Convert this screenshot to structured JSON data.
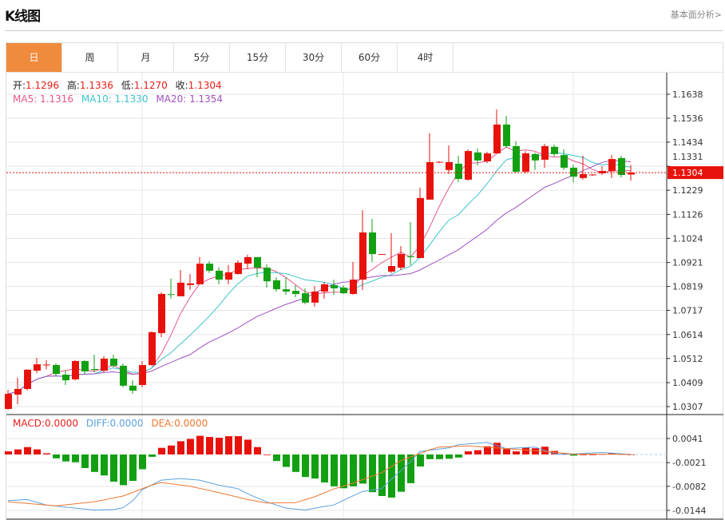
{
  "header": {
    "title": "K线图",
    "link": "基本面分析>"
  },
  "tabs": [
    {
      "label": "日",
      "active": true
    },
    {
      "label": "周"
    },
    {
      "label": "月"
    },
    {
      "label": "5分"
    },
    {
      "label": "15分"
    },
    {
      "label": "30分"
    },
    {
      "label": "60分"
    },
    {
      "label": "4时"
    }
  ],
  "ohlc_legend": {
    "open_label": "开:",
    "open": "1.1296",
    "high_label": "高:",
    "high": "1.1336",
    "low_label": "低:",
    "low": "1.1270",
    "close_label": "收:",
    "close": "1.1304"
  },
  "ma_legend": {
    "ma5": "MA5: 1.1316",
    "ma10": "MA10: 1.1330",
    "ma20": "MA20: 1.1354"
  },
  "macd_legend": {
    "macd": "MACD:0.0000",
    "diff": "DIFF:0.0000",
    "dea": "DEA:0.0000"
  },
  "current_price": "1.1304",
  "colors": {
    "up": "#e8120c",
    "down": "#12a012",
    "ma5": "#e8568a",
    "ma10": "#3cc4cc",
    "ma20": "#a050c0",
    "diff": "#5aa0e0",
    "dea": "#f07830",
    "active_tab": "#f08a3c"
  },
  "chart_data": [
    {
      "type": "candlestick",
      "price_ticks": [
        "1.1638",
        "1.1536",
        "1.1434",
        "1.1331",
        "1.1229",
        "1.1126",
        "1.1024",
        "1.0921",
        "1.0819",
        "1.0717",
        "1.0614",
        "1.0512",
        "1.0409",
        "1.0307"
      ],
      "ylim": [
        1.0307,
        1.1638
      ],
      "ohlc": [
        [
          1.0297,
          1.0378,
          1.0293,
          1.0361
        ],
        [
          1.0358,
          1.043,
          1.0317,
          1.0382
        ],
        [
          1.0382,
          1.0467,
          1.0375,
          1.0464
        ],
        [
          1.046,
          1.0515,
          1.045,
          1.0487
        ],
        [
          1.0483,
          1.0505,
          1.0466,
          1.0486
        ],
        [
          1.0484,
          1.0491,
          1.0436,
          1.0446
        ],
        [
          1.0443,
          1.046,
          1.0399,
          1.0419
        ],
        [
          1.0423,
          1.0505,
          1.0419,
          1.0501
        ],
        [
          1.0501,
          1.0505,
          1.0443,
          1.0457
        ],
        [
          1.0467,
          1.0528,
          1.0453,
          1.0463
        ],
        [
          1.046,
          1.0522,
          1.0453,
          1.0511
        ],
        [
          1.0511,
          1.0528,
          1.0474,
          1.0481
        ],
        [
          1.0481,
          1.0491,
          1.0389,
          1.0396
        ],
        [
          1.0396,
          1.0419,
          1.0361,
          1.0375
        ],
        [
          1.0399,
          1.0501,
          1.0389,
          1.0484
        ],
        [
          1.0484,
          1.0628,
          1.0481,
          1.0624
        ],
        [
          1.062,
          1.0794,
          1.0603,
          1.0787
        ],
        [
          1.0786,
          1.0852,
          1.0767,
          1.0783
        ],
        [
          1.0777,
          1.0889,
          1.0777,
          1.0835
        ],
        [
          1.0825,
          1.0872,
          1.0804,
          1.0832
        ],
        [
          1.0828,
          1.0944,
          1.0828,
          1.0916
        ],
        [
          1.0916,
          1.0927,
          1.0876,
          1.0886
        ],
        [
          1.0886,
          1.09,
          1.0828,
          1.0848
        ],
        [
          1.0848,
          1.091,
          1.0828,
          1.0879
        ],
        [
          1.0872,
          1.093,
          1.0869,
          1.092
        ],
        [
          1.0916,
          1.0954,
          1.0893,
          1.0944
        ],
        [
          1.0944,
          1.0944,
          1.0858,
          1.0899
        ],
        [
          1.0899,
          1.0913,
          1.0814,
          1.0841
        ],
        [
          1.0845,
          1.0858,
          1.0797,
          1.0807
        ],
        [
          1.0807,
          1.0858,
          1.0783,
          1.0797
        ],
        [
          1.08,
          1.0824,
          1.0773,
          1.0787
        ],
        [
          1.079,
          1.0811,
          1.0743,
          1.075
        ],
        [
          1.075,
          1.0821,
          1.0733,
          1.0797
        ],
        [
          1.0797,
          1.0838,
          1.0766,
          1.0828
        ],
        [
          1.0824,
          1.0848,
          1.0783,
          1.0811
        ],
        [
          1.0814,
          1.0824,
          1.0787,
          1.079
        ],
        [
          1.0787,
          1.0923,
          1.0783,
          1.0848
        ],
        [
          1.0848,
          1.1144,
          1.0804,
          1.1049
        ],
        [
          1.1049,
          1.1107,
          1.0923,
          1.0957
        ],
        [
          1.0955,
          1.0957,
          1.0955,
          1.0957
        ],
        [
          1.0882,
          1.1046,
          1.0876,
          1.0906
        ],
        [
          1.0899,
          1.0991,
          1.0889,
          1.0957
        ],
        [
          1.0947,
          1.1093,
          1.091,
          1.0944
        ],
        [
          1.094,
          1.124,
          1.094,
          1.1196
        ],
        [
          1.1189,
          1.1471,
          1.1189,
          1.1349
        ],
        [
          1.1348,
          1.1352,
          1.1345,
          1.135
        ],
        [
          1.1315,
          1.142,
          1.1298,
          1.1349
        ],
        [
          1.1342,
          1.1376,
          1.1263,
          1.1277
        ],
        [
          1.1274,
          1.1403,
          1.127,
          1.1396
        ],
        [
          1.139,
          1.1407,
          1.1335,
          1.1356
        ],
        [
          1.1352,
          1.1393,
          1.1345,
          1.1386
        ],
        [
          1.1386,
          1.1573,
          1.1386,
          1.1509
        ],
        [
          1.1509,
          1.1546,
          1.141,
          1.1417
        ],
        [
          1.1417,
          1.1437,
          1.1301,
          1.1308
        ],
        [
          1.1308,
          1.1396,
          1.1301,
          1.1386
        ],
        [
          1.1383,
          1.139,
          1.1315,
          1.1356
        ],
        [
          1.1359,
          1.1427,
          1.1325,
          1.1417
        ],
        [
          1.1414,
          1.1424,
          1.1372,
          1.1383
        ],
        [
          1.1379,
          1.1403,
          1.1315,
          1.1325
        ],
        [
          1.1325,
          1.1338,
          1.1263,
          1.1287
        ],
        [
          1.1281,
          1.1376,
          1.1274,
          1.1298
        ],
        [
          1.1294,
          1.1298,
          1.129,
          1.1296
        ],
        [
          1.1301,
          1.1331,
          1.1294,
          1.1311
        ],
        [
          1.1311,
          1.1379,
          1.1281,
          1.1362
        ],
        [
          1.1366,
          1.1376,
          1.1284,
          1.1294
        ],
        [
          1.1296,
          1.1336,
          1.127,
          1.1304
        ]
      ]
    },
    {
      "type": "bar+line",
      "macd_ticks": [
        "0.0041",
        "-0.0021",
        "-0.0082",
        "-0.0144"
      ],
      "ylim": [
        -0.0144,
        0.0041
      ],
      "macd": [
        0.0008,
        0.0013,
        0.0019,
        0.0013,
        0.0003,
        -0.001,
        -0.0018,
        -0.002,
        -0.0035,
        -0.0045,
        -0.0054,
        -0.007,
        -0.0079,
        -0.0068,
        -0.0038,
        -0.0006,
        0.0017,
        0.0023,
        0.0034,
        0.004,
        0.0048,
        0.0045,
        0.0043,
        0.0047,
        0.0047,
        0.0038,
        0.0019,
        0.0,
        -0.0017,
        -0.0032,
        -0.0045,
        -0.0058,
        -0.0062,
        -0.0072,
        -0.0082,
        -0.0087,
        -0.0082,
        -0.0075,
        -0.0097,
        -0.0107,
        -0.0111,
        -0.0096,
        -0.0074,
        -0.0031,
        -0.0012,
        -0.0012,
        -0.0011,
        -0.0008,
        0.0008,
        0.0011,
        0.0021,
        0.003,
        0.0014,
        0.0008,
        0.0018,
        0.0016,
        0.002,
        0.0009,
        0.0002,
        -0.0003,
        0.0,
        0.0,
        0.0001,
        0.0004,
        0.0001,
        0.0
      ],
      "diff": [
        [
          1,
          -0.0119
        ],
        [
          3,
          -0.0116
        ],
        [
          5,
          -0.013
        ],
        [
          8,
          -0.0138
        ],
        [
          10,
          -0.0143
        ],
        [
          12,
          -0.0142
        ],
        [
          13,
          -0.0137
        ],
        [
          14,
          -0.012
        ],
        [
          15,
          -0.0091
        ],
        [
          17,
          -0.0066
        ],
        [
          19,
          -0.0062
        ],
        [
          21,
          -0.0066
        ],
        [
          23,
          -0.0079
        ],
        [
          25,
          -0.0088
        ],
        [
          26,
          -0.0101
        ],
        [
          28,
          -0.0122
        ],
        [
          30,
          -0.0138
        ],
        [
          32,
          -0.0143
        ],
        [
          34,
          -0.0134
        ],
        [
          35,
          -0.013
        ],
        [
          36,
          -0.0118
        ],
        [
          38,
          -0.0095
        ],
        [
          40,
          -0.0088
        ],
        [
          41,
          -0.0064
        ],
        [
          43,
          -0.0019
        ],
        [
          44,
          0.0008
        ],
        [
          47,
          0.0017
        ],
        [
          48,
          0.0025
        ],
        [
          51,
          0.0031
        ],
        [
          53,
          0.0015
        ],
        [
          56,
          0.0019
        ],
        [
          58,
          0.0002
        ],
        [
          59,
          0.0
        ],
        [
          63,
          0.0005
        ],
        [
          66,
          0.0
        ]
      ],
      "dea": [
        [
          1,
          -0.0122
        ],
        [
          4,
          -0.0128
        ],
        [
          6,
          -0.0132
        ],
        [
          10,
          -0.0122
        ],
        [
          13,
          -0.0107
        ],
        [
          16,
          -0.0079
        ],
        [
          17,
          -0.0072
        ],
        [
          20,
          -0.0082
        ],
        [
          23,
          -0.0098
        ],
        [
          26,
          -0.0116
        ],
        [
          28,
          -0.0125
        ],
        [
          31,
          -0.0124
        ],
        [
          33,
          -0.0109
        ],
        [
          35,
          -0.0089
        ],
        [
          37,
          -0.0074
        ],
        [
          40,
          -0.0047
        ],
        [
          42,
          -0.0016
        ],
        [
          45,
          0.0012
        ],
        [
          46,
          0.0019
        ],
        [
          49,
          0.0022
        ],
        [
          53,
          0.0015
        ],
        [
          57,
          0.0008
        ],
        [
          60,
          0.0001
        ],
        [
          66,
          0.0
        ]
      ]
    }
  ]
}
